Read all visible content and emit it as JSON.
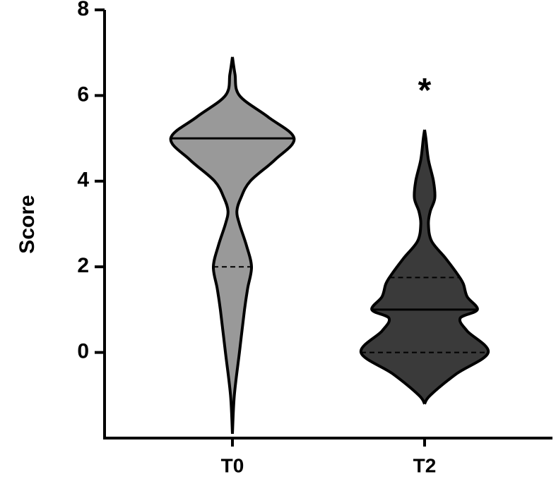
{
  "chart_data": {
    "type": "violin",
    "y_label": "Score",
    "categories": [
      "T0",
      "T2"
    ],
    "ylim": [
      -2,
      8
    ],
    "yticks": [
      0,
      2,
      4,
      6,
      8
    ],
    "series": [
      {
        "color": "#999999",
        "median": 5,
        "q1": 2,
        "q3": 5,
        "kde_y": [
          -1.9,
          -1,
          0,
          1,
          1.5,
          2,
          2.5,
          3,
          3.3,
          3.6,
          4,
          4.5,
          5,
          5.5,
          6,
          6.5,
          6.9
        ],
        "density": [
          0,
          0.03,
          0.11,
          0.19,
          0.24,
          0.3,
          0.22,
          0.11,
          0.07,
          0.13,
          0.28,
          0.67,
          0.97,
          0.56,
          0.11,
          0.04,
          0
        ]
      },
      {
        "color": "#3a3a3a",
        "median": 1,
        "q1": 0,
        "q3": 1.75,
        "kde_y": [
          -1.2,
          -1,
          -0.5,
          0,
          0.5,
          0.8,
          1,
          1.3,
          1.6,
          1.8,
          2.2,
          2.6,
          3,
          3.3,
          3.6,
          4,
          4.5,
          5,
          5.2
        ],
        "density": [
          0,
          0.09,
          0.5,
          1,
          0.67,
          0.56,
          0.83,
          0.67,
          0.61,
          0.53,
          0.33,
          0.11,
          0.06,
          0.09,
          0.16,
          0.14,
          0.06,
          0.02,
          0
        ]
      }
    ],
    "annotations": [
      {
        "text": "*",
        "category": 1,
        "y": 6.2
      }
    ]
  }
}
